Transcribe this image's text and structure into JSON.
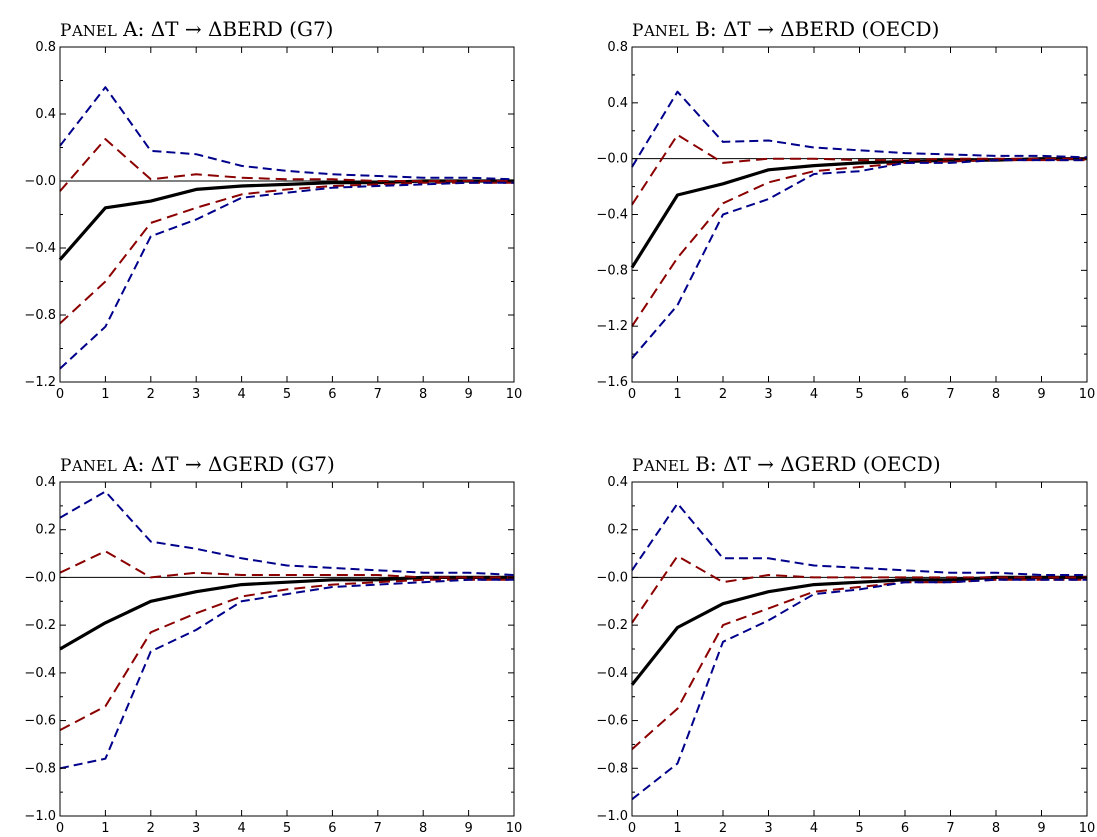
{
  "colors": {
    "response": "#000000",
    "band_inner": "#8b0000",
    "band_outer": "#00008b",
    "zero_line": "#000000"
  },
  "chart_data": [
    {
      "type": "line",
      "title": {
        "panel": "Panel",
        "rest": " A: ΔT → ΔBERD (G7)"
      },
      "x": [
        0,
        1,
        2,
        3,
        4,
        5,
        6,
        7,
        8,
        9,
        10
      ],
      "xticks": [
        "0",
        "1",
        "2",
        "3",
        "4",
        "5",
        "6",
        "7",
        "8",
        "9",
        "10"
      ],
      "ylim": [
        -1.2,
        0.8
      ],
      "yticks": [
        "0.8",
        "0.4",
        "−0.0",
        "−0.4",
        "−0.8",
        "−1.2"
      ],
      "ytick_values": [
        0.8,
        0.4,
        0.0,
        -0.4,
        -0.8,
        -1.2
      ],
      "series": [
        {
          "role": "response",
          "values": [
            -0.47,
            -0.16,
            -0.12,
            -0.05,
            -0.03,
            -0.02,
            -0.01,
            -0.01,
            0.0,
            0.0,
            0.0
          ]
        },
        {
          "role": "band_inner_upper",
          "values": [
            -0.06,
            0.25,
            0.01,
            0.04,
            0.02,
            0.01,
            0.01,
            0.0,
            0.0,
            0.0,
            0.0
          ]
        },
        {
          "role": "band_inner_lower",
          "values": [
            -0.85,
            -0.6,
            -0.25,
            -0.16,
            -0.08,
            -0.05,
            -0.03,
            -0.02,
            -0.01,
            -0.01,
            -0.01
          ]
        },
        {
          "role": "band_outer_upper",
          "values": [
            0.21,
            0.56,
            0.18,
            0.16,
            0.09,
            0.06,
            0.04,
            0.03,
            0.02,
            0.02,
            0.01
          ]
        },
        {
          "role": "band_outer_lower",
          "values": [
            -1.12,
            -0.87,
            -0.33,
            -0.23,
            -0.1,
            -0.07,
            -0.04,
            -0.03,
            -0.02,
            -0.01,
            -0.01
          ]
        }
      ]
    },
    {
      "type": "line",
      "title": {
        "panel": "Panel",
        "rest": " B: ΔT → ΔBERD (OECD)"
      },
      "x": [
        0,
        1,
        2,
        3,
        4,
        5,
        6,
        7,
        8,
        9,
        10
      ],
      "xticks": [
        "0",
        "1",
        "2",
        "3",
        "4",
        "5",
        "6",
        "7",
        "8",
        "9",
        "10"
      ],
      "ylim": [
        -1.6,
        0.8
      ],
      "yticks": [
        "0.8",
        "0.4",
        "−0.0",
        "−0.4",
        "−0.8",
        "−1.2",
        "−1.6"
      ],
      "ytick_values": [
        0.8,
        0.4,
        0.0,
        -0.4,
        -0.8,
        -1.2,
        -1.6
      ],
      "series": [
        {
          "role": "response",
          "values": [
            -0.78,
            -0.26,
            -0.18,
            -0.08,
            -0.05,
            -0.03,
            -0.02,
            -0.01,
            -0.01,
            0.0,
            0.0
          ]
        },
        {
          "role": "band_inner_upper",
          "values": [
            -0.33,
            0.17,
            -0.03,
            0.0,
            0.0,
            -0.01,
            -0.01,
            0.0,
            0.0,
            0.0,
            0.0
          ]
        },
        {
          "role": "band_inner_lower",
          "values": [
            -1.2,
            -0.71,
            -0.32,
            -0.17,
            -0.09,
            -0.06,
            -0.03,
            -0.02,
            -0.01,
            -0.01,
            -0.01
          ]
        },
        {
          "role": "band_outer_upper",
          "values": [
            -0.06,
            0.48,
            0.12,
            0.13,
            0.08,
            0.06,
            0.04,
            0.03,
            0.02,
            0.02,
            0.01
          ]
        },
        {
          "role": "band_outer_lower",
          "values": [
            -1.43,
            -1.05,
            -0.4,
            -0.29,
            -0.11,
            -0.09,
            -0.03,
            -0.03,
            -0.01,
            -0.01,
            -0.01
          ]
        }
      ]
    },
    {
      "type": "line",
      "title": {
        "panel": "Panel",
        "rest": " A: ΔT → ΔGERD (G7)"
      },
      "x": [
        0,
        1,
        2,
        3,
        4,
        5,
        6,
        7,
        8,
        9,
        10
      ],
      "xticks": [
        "0",
        "1",
        "2",
        "3",
        "4",
        "5",
        "6",
        "7",
        "8",
        "9",
        "10"
      ],
      "ylim": [
        -1.0,
        0.4
      ],
      "yticks": [
        "0.4",
        "0.2",
        "−0.0",
        "−0.2",
        "−0.4",
        "−0.6",
        "−0.8",
        "−1.0"
      ],
      "ytick_values": [
        0.4,
        0.2,
        0.0,
        -0.2,
        -0.4,
        -0.6,
        -0.8,
        -1.0
      ],
      "series": [
        {
          "role": "response",
          "values": [
            -0.3,
            -0.19,
            -0.1,
            -0.06,
            -0.03,
            -0.02,
            -0.01,
            -0.01,
            0.0,
            0.0,
            0.0
          ]
        },
        {
          "role": "band_inner_upper",
          "values": [
            0.02,
            0.11,
            0.0,
            0.02,
            0.01,
            0.01,
            0.01,
            0.01,
            0.0,
            0.0,
            0.0
          ]
        },
        {
          "role": "band_inner_lower",
          "values": [
            -0.64,
            -0.54,
            -0.23,
            -0.15,
            -0.08,
            -0.05,
            -0.03,
            -0.02,
            -0.01,
            -0.01,
            -0.01
          ]
        },
        {
          "role": "band_outer_upper",
          "values": [
            0.25,
            0.36,
            0.15,
            0.12,
            0.08,
            0.05,
            0.04,
            0.03,
            0.02,
            0.02,
            0.01
          ]
        },
        {
          "role": "band_outer_lower",
          "values": [
            -0.8,
            -0.76,
            -0.31,
            -0.22,
            -0.1,
            -0.07,
            -0.04,
            -0.03,
            -0.02,
            -0.01,
            -0.01
          ]
        }
      ]
    },
    {
      "type": "line",
      "title": {
        "panel": "Panel",
        "rest": " B: ΔT → ΔGERD (OECD)"
      },
      "x": [
        0,
        1,
        2,
        3,
        4,
        5,
        6,
        7,
        8,
        9,
        10
      ],
      "xticks": [
        "0",
        "1",
        "2",
        "3",
        "4",
        "5",
        "6",
        "7",
        "8",
        "9",
        "10"
      ],
      "ylim": [
        -1.0,
        0.4
      ],
      "yticks": [
        "0.4",
        "0.2",
        "−0.0",
        "−0.2",
        "−0.4",
        "−0.6",
        "−0.8",
        "−1.0"
      ],
      "ytick_values": [
        0.4,
        0.2,
        0.0,
        -0.2,
        -0.4,
        -0.6,
        -0.8,
        -1.0
      ],
      "series": [
        {
          "role": "response",
          "values": [
            -0.45,
            -0.21,
            -0.11,
            -0.06,
            -0.03,
            -0.02,
            -0.01,
            -0.01,
            0.0,
            0.0,
            0.0
          ]
        },
        {
          "role": "band_inner_upper",
          "values": [
            -0.19,
            0.09,
            -0.02,
            0.01,
            0.0,
            0.0,
            0.0,
            0.0,
            0.0,
            0.0,
            0.0
          ]
        },
        {
          "role": "band_inner_lower",
          "values": [
            -0.72,
            -0.55,
            -0.2,
            -0.13,
            -0.06,
            -0.04,
            -0.02,
            -0.02,
            -0.01,
            -0.01,
            -0.01
          ]
        },
        {
          "role": "band_outer_upper",
          "values": [
            0.03,
            0.31,
            0.08,
            0.08,
            0.05,
            0.04,
            0.03,
            0.02,
            0.02,
            0.01,
            0.01
          ]
        },
        {
          "role": "band_outer_lower",
          "values": [
            -0.93,
            -0.78,
            -0.27,
            -0.18,
            -0.07,
            -0.05,
            -0.02,
            -0.02,
            -0.01,
            -0.01,
            -0.01
          ]
        }
      ]
    }
  ]
}
